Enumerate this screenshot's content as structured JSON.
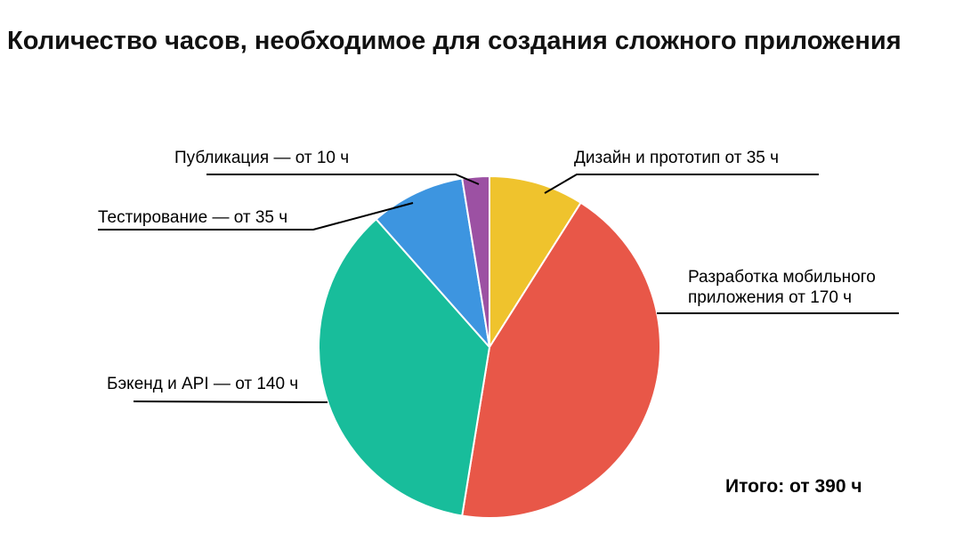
{
  "title": "Количество часов, необходимое для создания сложного приложения",
  "total_label": "Итого: от 390 ч",
  "chart_data": {
    "type": "pie",
    "title": "Количество часов, необходимое для создания сложного приложения",
    "unit": "ч",
    "total": 390,
    "start_angle_deg": 0,
    "direction": "clockwise",
    "legend_position": "callout-labels",
    "slices": [
      {
        "label": "Дизайн и прототип от 35 ч",
        "value": 35,
        "color": "#EFC32D"
      },
      {
        "label": "Разработка мобильного приложения от 170 ч",
        "value": 170,
        "color": "#E85748"
      },
      {
        "label": "Бэкенд и API — от 140 ч",
        "value": 140,
        "color": "#18BD9B"
      },
      {
        "label": "Тестирование — от 35 ч",
        "value": 35,
        "color": "#3D95E0"
      },
      {
        "label": "Публикация — от 10 ч",
        "value": 10,
        "color": "#9C51A3"
      }
    ],
    "annotation_total": "Итого: от 390 ч"
  }
}
